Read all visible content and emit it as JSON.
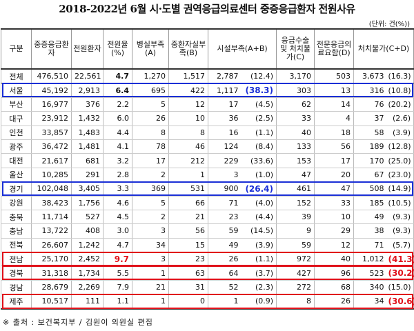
{
  "title": "2018-2022년 6월 시·도별 권역응급의료센터 중증응급환자 전원사유",
  "unit": "(단위: 건(%))",
  "table": {
    "headers": [
      "구분",
      "중증응급환자",
      "전원환자",
      "전원율(%)",
      "병실부족(A)",
      "중환자실부족(B)",
      "시설부족(A+B)",
      "응급수술 및 처치불가(C)",
      "전문응급의료요함(D)",
      "처치불가(C+D)"
    ],
    "rows": [
      [
        "전체",
        "476,510",
        "22,561",
        "4.7",
        "1,270",
        "1,517",
        "2,787",
        "(12.4)",
        "3,170",
        "503",
        "3,673",
        "(16.3)"
      ],
      [
        "서울",
        "45,192",
        "2,913",
        "6.4",
        "695",
        "422",
        "1,117",
        "(38.3)",
        "303",
        "13",
        "316",
        "(10.8)"
      ],
      [
        "부산",
        "16,977",
        "376",
        "2.2",
        "5",
        "12",
        "17",
        "(4.5)",
        "62",
        "14",
        "76",
        "(20.2)"
      ],
      [
        "대구",
        "23,912",
        "1,432",
        "6.0",
        "26",
        "10",
        "36",
        "(2.5)",
        "33",
        "4",
        "37",
        "(2.6)"
      ],
      [
        "인천",
        "33,857",
        "1,483",
        "4.4",
        "8",
        "8",
        "16",
        "(1.1)",
        "40",
        "18",
        "58",
        "(3.9)"
      ],
      [
        "광주",
        "36,472",
        "1,481",
        "4.1",
        "78",
        "46",
        "124",
        "(8.4)",
        "133",
        "56",
        "189",
        "(12.8)"
      ],
      [
        "대전",
        "21,617",
        "681",
        "3.2",
        "17",
        "212",
        "229",
        "(33.6)",
        "153",
        "17",
        "170",
        "(25.0)"
      ],
      [
        "울산",
        "10,285",
        "291",
        "2.8",
        "2",
        "1",
        "3",
        "(1.0)",
        "47",
        "20",
        "67",
        "(23.0)"
      ],
      [
        "경기",
        "102,048",
        "3,405",
        "3.3",
        "369",
        "531",
        "900",
        "(26.4)",
        "461",
        "47",
        "508",
        "(14.9)"
      ],
      [
        "강원",
        "38,423",
        "1,756",
        "4.6",
        "5",
        "66",
        "71",
        "(4.0)",
        "152",
        "33",
        "185",
        "(10.5)"
      ],
      [
        "충북",
        "11,714",
        "527",
        "4.5",
        "2",
        "21",
        "23",
        "(4.4)",
        "39",
        "10",
        "49",
        "(9.3)"
      ],
      [
        "충남",
        "13,722",
        "408",
        "3.0",
        "3",
        "56",
        "59",
        "(14.5)",
        "9",
        "29",
        "38",
        "(9.3)"
      ],
      [
        "전북",
        "26,607",
        "1,242",
        "4.7",
        "34",
        "15",
        "49",
        "(3.9)",
        "59",
        "12",
        "71",
        "(5.7)"
      ],
      [
        "전남",
        "25,170",
        "2,452",
        "9.7",
        "3",
        "23",
        "26",
        "(1.1)",
        "972",
        "40",
        "1,012",
        "(41.3)"
      ],
      [
        "경북",
        "31,318",
        "1,734",
        "5.5",
        "1",
        "63",
        "64",
        "(3.7)",
        "427",
        "96",
        "523",
        "(30.2)"
      ],
      [
        "경남",
        "28,679",
        "2,269",
        "7.9",
        "21",
        "31",
        "52",
        "(2.3)",
        "272",
        "68",
        "340",
        "(15.0)"
      ],
      [
        "제주",
        "10,517",
        "111",
        "1.1",
        "1",
        "0",
        "1",
        "(0.9)",
        "8",
        "26",
        "34",
        "(30.6)"
      ]
    ]
  },
  "source": "※ 출처 : 보건복지부 / 김원이 의원실 편집"
}
